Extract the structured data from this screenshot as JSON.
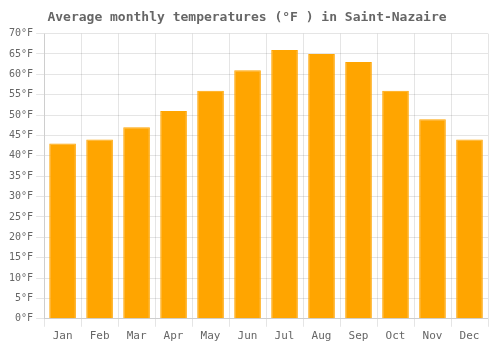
{
  "chart_data": {
    "type": "bar",
    "title": "Average monthly temperatures (°F ) in Saint-Nazaire",
    "categories": [
      "Jan",
      "Feb",
      "Mar",
      "Apr",
      "May",
      "Jun",
      "Jul",
      "Aug",
      "Sep",
      "Oct",
      "Nov",
      "Dec"
    ],
    "values": [
      43,
      44,
      47,
      51,
      56,
      61,
      66,
      65,
      63,
      56,
      49,
      44
    ],
    "color": "#FFA500",
    "ylim": [
      0,
      70
    ],
    "yticks": [
      {
        "value": 0,
        "label": "0°F"
      },
      {
        "value": 5,
        "label": "5°F"
      },
      {
        "value": 10,
        "label": "10°F"
      },
      {
        "value": 15,
        "label": "15°F"
      },
      {
        "value": 20,
        "label": "20°F"
      },
      {
        "value": 25,
        "label": "25°F"
      },
      {
        "value": 30,
        "label": "30°F"
      },
      {
        "value": 35,
        "label": "35°F"
      },
      {
        "value": 40,
        "label": "40°F"
      },
      {
        "value": 45,
        "label": "45°F"
      },
      {
        "value": 50,
        "label": "50°F"
      },
      {
        "value": 55,
        "label": "55°F"
      },
      {
        "value": 60,
        "label": "60°F"
      },
      {
        "value": 65,
        "label": "65°F"
      },
      {
        "value": 70,
        "label": "70°F"
      }
    ],
    "grid": true
  }
}
